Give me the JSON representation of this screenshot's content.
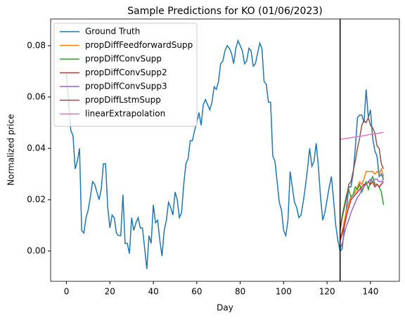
{
  "chart_data": {
    "type": "line",
    "title": "Sample Predictions for KO (01/06/2023)",
    "x_label": "Day",
    "y_label": "Normalized price",
    "xlim": [
      -7.3,
      153.3
    ],
    "ylim": [
      -0.0118,
      0.0904
    ],
    "xticks": [
      0,
      20,
      40,
      60,
      80,
      100,
      120,
      140
    ],
    "yticks": [
      {
        "value": 0,
        "label": "0.00"
      },
      {
        "value": 0.02,
        "label": "0.02"
      },
      {
        "value": 0.04,
        "label": "0.04"
      },
      {
        "value": 0.06,
        "label": "0.06"
      },
      {
        "value": 0.08,
        "label": "0.08"
      }
    ],
    "vline": 126,
    "legend": "upper left",
    "series": [
      {
        "name": "Ground Truth",
        "color": "#1f77b4",
        "x": [
          0,
          1,
          2,
          3,
          4,
          5,
          6,
          7,
          8,
          9,
          10,
          11,
          12,
          13,
          14,
          15,
          16,
          17,
          18,
          19,
          20,
          21,
          22,
          23,
          24,
          25,
          26,
          27,
          28,
          29,
          30,
          31,
          32,
          33,
          34,
          35,
          36,
          37,
          38,
          39,
          40,
          41,
          42,
          43,
          44,
          45,
          46,
          47,
          48,
          49,
          50,
          51,
          52,
          53,
          54,
          55,
          56,
          57,
          58,
          59,
          60,
          61,
          62,
          63,
          64,
          65,
          66,
          67,
          68,
          69,
          70,
          71,
          72,
          73,
          74,
          75,
          76,
          77,
          78,
          79,
          80,
          81,
          82,
          83,
          84,
          85,
          86,
          87,
          88,
          89,
          90,
          91,
          92,
          93,
          94,
          95,
          96,
          97,
          98,
          99,
          100,
          101,
          102,
          103,
          104,
          105,
          106,
          107,
          108,
          109,
          110,
          111,
          112,
          113,
          114,
          115,
          116,
          117,
          118,
          119,
          120,
          121,
          122,
          123,
          124,
          125,
          126,
          127,
          128,
          129,
          130,
          131,
          132,
          133,
          134,
          135,
          136,
          137,
          138,
          139,
          140,
          141,
          142,
          143,
          144,
          145,
          146
        ],
        "values": [
          0.069,
          0.058,
          0.047,
          0.045,
          0.032,
          0.035,
          0.04,
          0.008,
          0.007,
          0.013,
          0.016,
          0.021,
          0.027,
          0.026,
          0.023,
          0.02,
          0.024,
          0.034,
          0.034,
          0.017,
          0.009,
          0.014,
          0.013,
          0.007,
          0.006,
          0.006,
          0.022,
          0.003,
          0.003,
          -0.001,
          0.013,
          0.008,
          0.011,
          0.013,
          0.009,
          0.009,
          0.001,
          -0.007,
          0.006,
          0.003,
          0.018,
          0.011,
          0.012,
          0.004,
          -0.002,
          0.008,
          0.012,
          0.019,
          0.017,
          0.014,
          0.023,
          0.02,
          0.013,
          0.015,
          0.026,
          0.034,
          0.036,
          0.043,
          0.043,
          0.047,
          0.05,
          0.054,
          0.049,
          0.057,
          0.059,
          0.057,
          0.055,
          0.058,
          0.064,
          0.063,
          0.066,
          0.073,
          0.074,
          0.078,
          0.08,
          0.079,
          0.077,
          0.073,
          0.079,
          0.082,
          0.08,
          0.078,
          0.073,
          0.074,
          0.079,
          0.078,
          0.072,
          0.073,
          0.077,
          0.081,
          0.079,
          0.066,
          0.065,
          0.058,
          0.058,
          0.037,
          0.035,
          0.027,
          0.019,
          0.016,
          0.008,
          0.006,
          0.012,
          0.031,
          0.025,
          0.019,
          0.017,
          0.013,
          0.014,
          0.019,
          0.025,
          0.032,
          0.04,
          0.033,
          0.035,
          0.042,
          0.033,
          0.021,
          0.012,
          0.015,
          0.02,
          0.025,
          0.029,
          0.02,
          0.01,
          0.004,
          0.0,
          0.001,
          0.01,
          0.017,
          0.025,
          0.025,
          0.03,
          0.04,
          0.052,
          0.053,
          0.053,
          0.05,
          0.063,
          0.052,
          0.055,
          0.044,
          0.039,
          0.037,
          0.029,
          0.03,
          0.028
        ]
      },
      {
        "name": "propDiffFeedforwardSupp",
        "color": "#ff7f0e",
        "x": [
          126,
          127,
          128,
          129,
          130,
          131,
          132,
          133,
          134,
          135,
          136,
          137,
          138,
          139,
          140,
          141,
          142,
          143,
          144,
          145,
          146
        ],
        "values": [
          0.005,
          0.008,
          0.012,
          0.016,
          0.019,
          0.021,
          0.022,
          0.023,
          0.025,
          0.027,
          0.026,
          0.028,
          0.031,
          0.031,
          0.031,
          0.031,
          0.03,
          0.031,
          0.03,
          0.032,
          0.029
        ]
      },
      {
        "name": "propDiffConvSupp",
        "color": "#2ca02c",
        "x": [
          126,
          127,
          128,
          129,
          130,
          131,
          132,
          133,
          134,
          135,
          136,
          137,
          138,
          139,
          140,
          141,
          142,
          143,
          144,
          145,
          146
        ],
        "values": [
          0.008,
          0.014,
          0.018,
          0.022,
          0.024,
          0.021,
          0.022,
          0.025,
          0.024,
          0.026,
          0.023,
          0.025,
          0.027,
          0.024,
          0.027,
          0.029,
          0.026,
          0.026,
          0.025,
          0.023,
          0.018
        ]
      },
      {
        "name": "propDiffConvSupp2",
        "color": "#d62728",
        "x": [
          126,
          127,
          128,
          129,
          130,
          131,
          132,
          133,
          134,
          135,
          136,
          137,
          138,
          139,
          140,
          141,
          142,
          143,
          144,
          145,
          146
        ],
        "values": [
          0.004,
          0.007,
          0.01,
          0.014,
          0.017,
          0.02,
          0.021,
          0.022,
          0.023,
          0.024,
          0.025,
          0.026,
          0.026,
          0.027,
          0.026,
          0.027,
          0.025,
          0.026,
          0.025,
          0.026,
          0.027
        ]
      },
      {
        "name": "propDiffConvSupp3",
        "color": "#9467bd",
        "x": [
          126,
          127,
          128,
          129,
          130,
          131,
          132,
          133,
          134,
          135,
          136,
          137,
          138,
          139,
          140,
          141,
          142,
          143,
          144,
          145,
          146
        ],
        "values": [
          0.001,
          0.003,
          0.007,
          0.01,
          0.012,
          0.015,
          0.017,
          0.019,
          0.021,
          0.022,
          0.024,
          0.025,
          0.026,
          0.027,
          0.028,
          0.027,
          0.028,
          0.028,
          0.027,
          0.027,
          0.028
        ]
      },
      {
        "name": "propDiffLstmSupp",
        "color": "#8c564b",
        "x": [
          126,
          127,
          128,
          129,
          130,
          131,
          132,
          133,
          134,
          135,
          136,
          137,
          138,
          139,
          140,
          141,
          142,
          143,
          144,
          145,
          146
        ],
        "values": [
          0.008,
          0.013,
          0.017,
          0.021,
          0.026,
          0.027,
          0.031,
          0.035,
          0.04,
          0.044,
          0.049,
          0.051,
          0.05,
          0.052,
          0.049,
          0.048,
          0.046,
          0.041,
          0.04,
          0.034,
          0.032
        ]
      },
      {
        "name": "linearExtrapolation",
        "color": "#e377c2",
        "x": [
          126,
          127,
          128,
          129,
          130,
          131,
          132,
          133,
          134,
          135,
          136,
          137,
          138,
          139,
          140,
          141,
          142,
          143,
          144,
          145,
          146
        ],
        "values": [
          0.0435,
          0.0436,
          0.0438,
          0.0439,
          0.044,
          0.0442,
          0.0443,
          0.0444,
          0.0446,
          0.0447,
          0.0448,
          0.045,
          0.0451,
          0.0453,
          0.0454,
          0.0455,
          0.0457,
          0.0458,
          0.0459,
          0.0461,
          0.0462
        ]
      }
    ]
  }
}
